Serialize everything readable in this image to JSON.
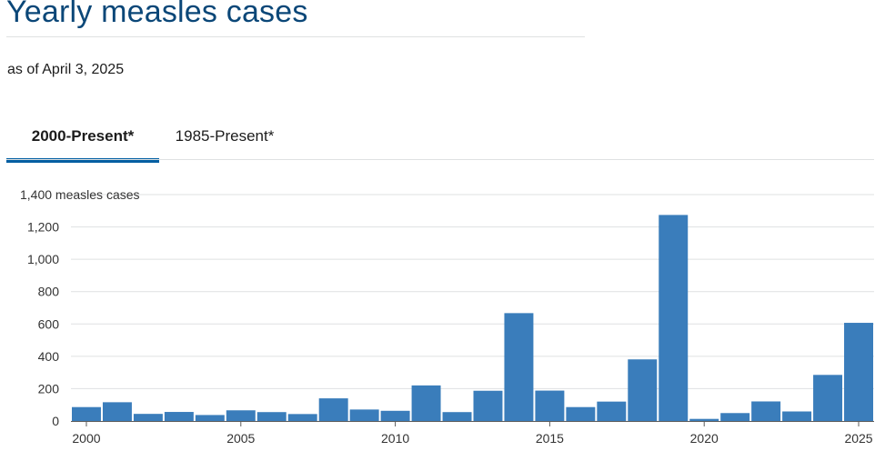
{
  "page": {
    "title": "Yearly measles cases",
    "subtitle": "as of April 3, 2025"
  },
  "tabs": [
    {
      "label": "2000-Present*",
      "active": true
    },
    {
      "label": "1985-Present*",
      "active": false
    }
  ],
  "colors": {
    "bar": "#3a7dbb",
    "title": "#0b4778",
    "tab_accent": "#005ea2",
    "grid": "#dfe1e2",
    "baseline": "#5c5c5c"
  },
  "chart_data": {
    "type": "bar",
    "categories": [
      2000,
      2001,
      2002,
      2003,
      2004,
      2005,
      2006,
      2007,
      2008,
      2009,
      2010,
      2011,
      2012,
      2013,
      2014,
      2015,
      2016,
      2017,
      2018,
      2019,
      2020,
      2021,
      2022,
      2023,
      2024,
      2025
    ],
    "values": [
      86,
      116,
      44,
      56,
      37,
      66,
      55,
      43,
      140,
      71,
      63,
      220,
      55,
      187,
      667,
      188,
      86,
      120,
      381,
      1274,
      13,
      49,
      121,
      59,
      285,
      607
    ],
    "ylabel": "measles cases",
    "ylim": [
      0,
      1400
    ],
    "yticks": [
      0,
      200,
      400,
      600,
      800,
      1000,
      1200,
      1400
    ],
    "ytick_labels": [
      "0",
      "200",
      "400",
      "600",
      "800",
      "1,000",
      "1,200",
      "1,400 measles cases"
    ],
    "xticks": [
      2000,
      2005,
      2010,
      2015,
      2020,
      2025
    ],
    "xtick_labels": [
      "2000",
      "2005",
      "2010",
      "2015",
      "2020",
      "2025"
    ],
    "grid": true,
    "legend": "none"
  }
}
